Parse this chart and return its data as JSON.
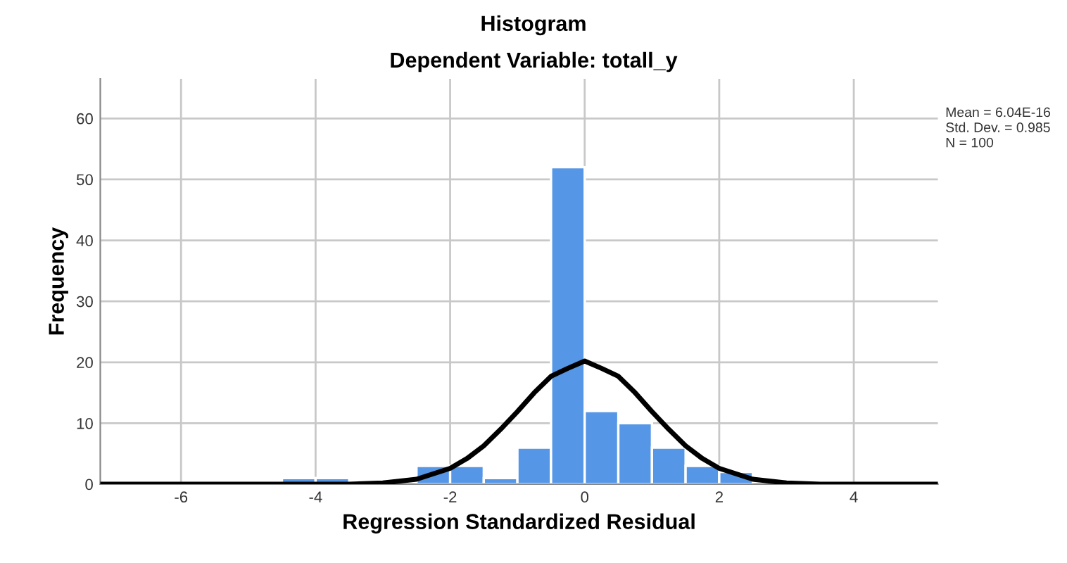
{
  "chart_data": {
    "type": "histogram",
    "title": "Histogram",
    "subtitle": "Dependent Variable: totall_y",
    "xlabel": "Regression Standardized Residual",
    "ylabel": "Frequency",
    "bins": [
      -4.5,
      -4,
      -3.5,
      -3,
      -2.5,
      -2,
      -1.5,
      -1,
      -0.5,
      0,
      0.5,
      1,
      1.5,
      2,
      2.5
    ],
    "values": [
      1,
      1,
      0,
      0,
      3,
      3,
      1,
      6,
      52,
      12,
      10,
      6,
      3,
      2
    ],
    "color": "#5596e6",
    "series": [
      {
        "type": "line",
        "color": "#000000",
        "x": [
          -7.2,
          -4,
          -3.5,
          -3,
          -2.5,
          -2,
          -1.75,
          -1.5,
          -1.25,
          -1,
          -0.75,
          -0.5,
          -0.25,
          0,
          0.25,
          0.5,
          0.75,
          1,
          1.25,
          1.5,
          1.75,
          2,
          2.5,
          3,
          3.5,
          4,
          5.25
        ],
        "values": [
          0,
          0,
          0,
          0.2,
          0.8,
          2.6,
          4.2,
          6.3,
          9,
          11.9,
          15,
          17.7,
          19,
          20.2,
          19,
          17.7,
          15,
          11.9,
          9,
          6.3,
          4.2,
          2.6,
          0.8,
          0.2,
          0,
          0,
          0
        ]
      }
    ],
    "xlim": [
      -7.2,
      5.25
    ],
    "xticks": [
      -6,
      -4,
      -2,
      0,
      2,
      4
    ],
    "ylim": [
      0,
      66.5
    ],
    "yticks": [
      0,
      10,
      20,
      30,
      40,
      50,
      60
    ],
    "grid": true,
    "legend": false,
    "annotations": [
      "Mean = 6.04E-16",
      "Std. Dev. = 0.985",
      "N = 100"
    ]
  }
}
